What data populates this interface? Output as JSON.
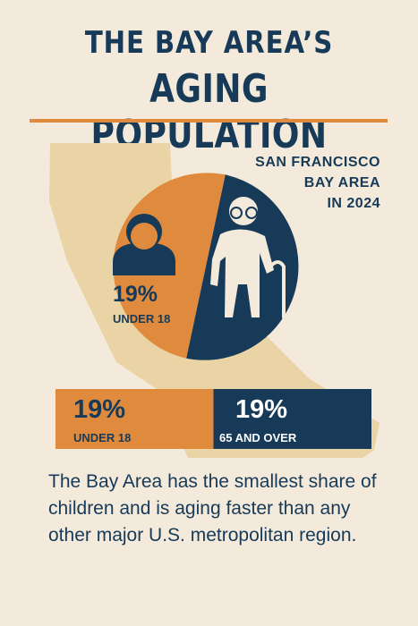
{
  "title": {
    "line1": "THE BAY AREA’S",
    "line2": "AGING POPULATION"
  },
  "region": {
    "line1": "SAN FRANCISCO",
    "line2": "BAY AREA",
    "line3": "IN 2024"
  },
  "chart_data": [
    {
      "type": "pie",
      "slices": [
        {
          "label": "UNDER 18",
          "value": 19,
          "display": "19%",
          "color": "#df8a3c"
        },
        {
          "label": "65 AND OVER",
          "value": 19,
          "color": "#163a57"
        }
      ]
    },
    {
      "type": "bar",
      "orientation": "horizontal-stacked",
      "segments": [
        {
          "label": "UNDER 18",
          "value": 19,
          "display": "19%",
          "color": "#df8a3c"
        },
        {
          "label": "65 AND OVER",
          "value": 19,
          "display": "19%",
          "color": "#163a57"
        }
      ]
    }
  ],
  "body_text": "The Bay Area has the smallest share of children and is aging faster than any other major U.S. metropolitan region.",
  "colors": {
    "navy": "#163a57",
    "orange": "#df8a3c",
    "background": "#f4eadc",
    "map": "#ead3a5"
  },
  "icons": [
    "california-map-icon",
    "child-icon",
    "elderly-person-icon"
  ]
}
